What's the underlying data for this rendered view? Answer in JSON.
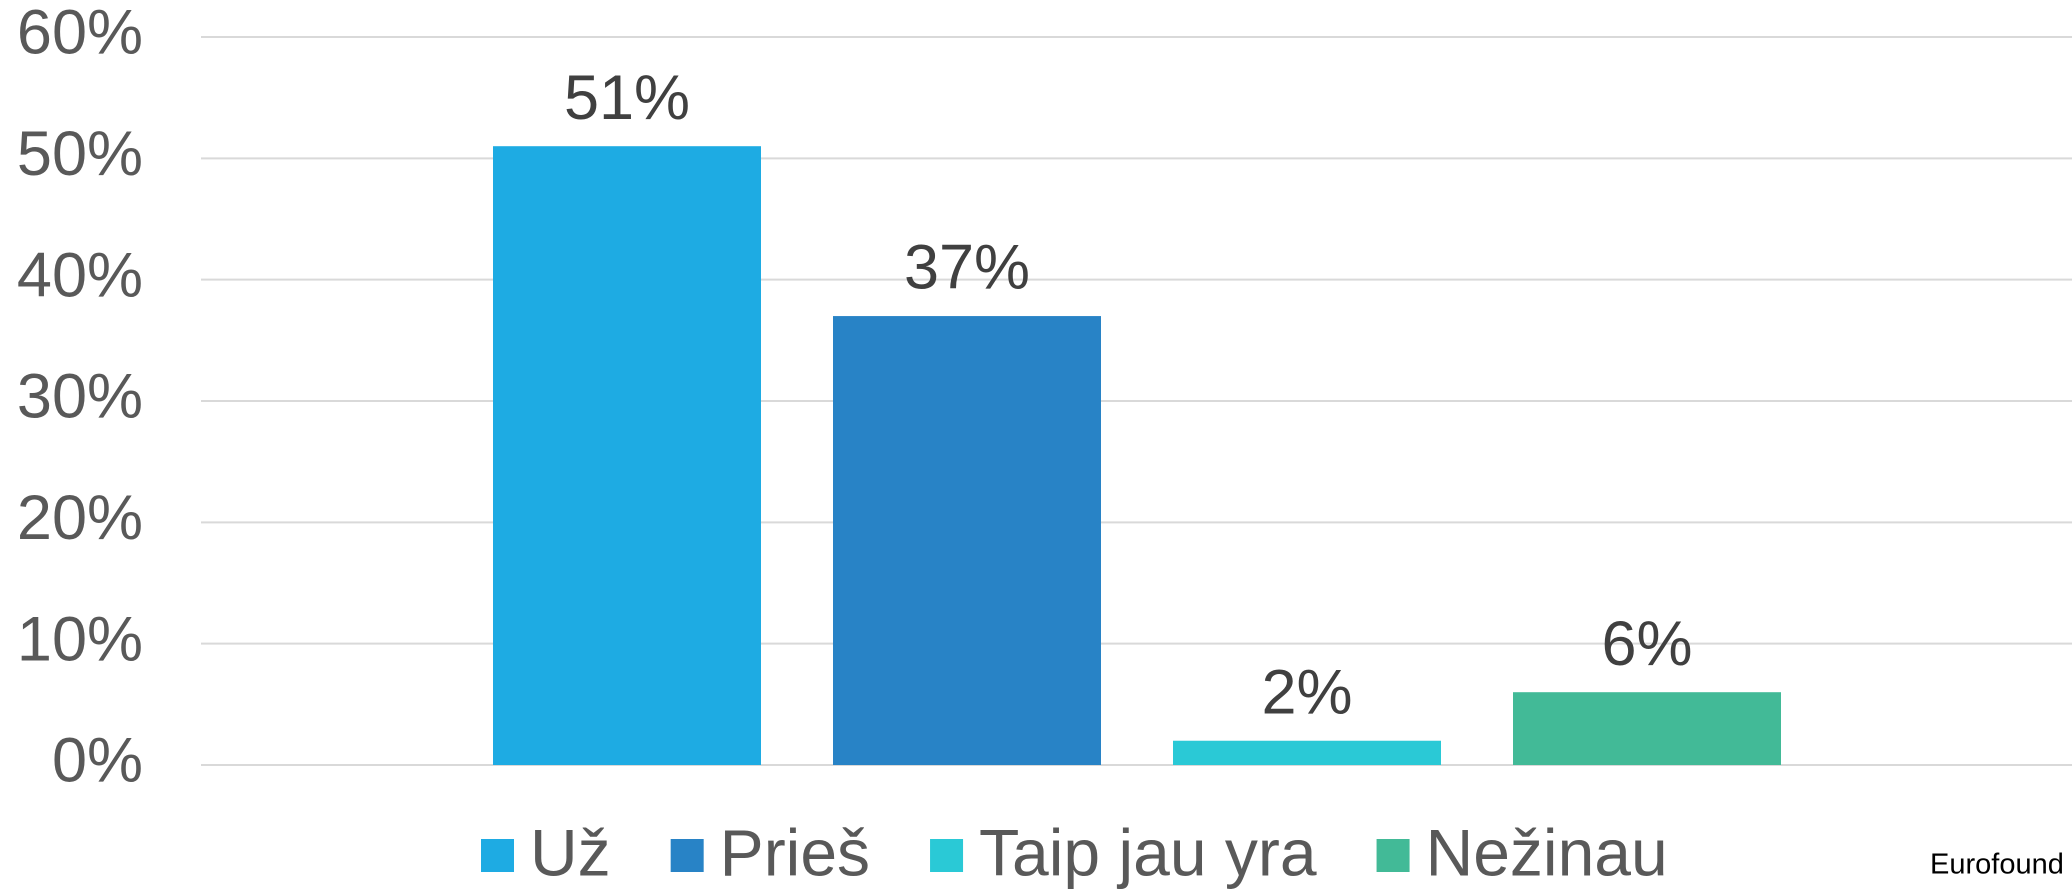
{
  "chart_data": {
    "type": "bar",
    "categories": [
      "Už",
      "Prieš",
      "Taip jau yra",
      "Nežinau"
    ],
    "values": [
      51,
      37,
      2,
      6
    ],
    "value_labels": [
      "51%",
      "37%",
      "2%",
      "6%"
    ],
    "colors": [
      "#1eabe3",
      "#2883c6",
      "#2ac9d6",
      "#42ba97"
    ],
    "ylim": [
      0,
      60
    ],
    "yticks": [
      {
        "value": 0,
        "label": "0%"
      },
      {
        "value": 10,
        "label": "10%"
      },
      {
        "value": 20,
        "label": "20%"
      },
      {
        "value": 30,
        "label": "30%"
      },
      {
        "value": 40,
        "label": "40%"
      },
      {
        "value": 50,
        "label": "50%"
      },
      {
        "value": 60,
        "label": "60%"
      }
    ],
    "grid": true,
    "legend": "bottom",
    "source": "Eurofound"
  }
}
